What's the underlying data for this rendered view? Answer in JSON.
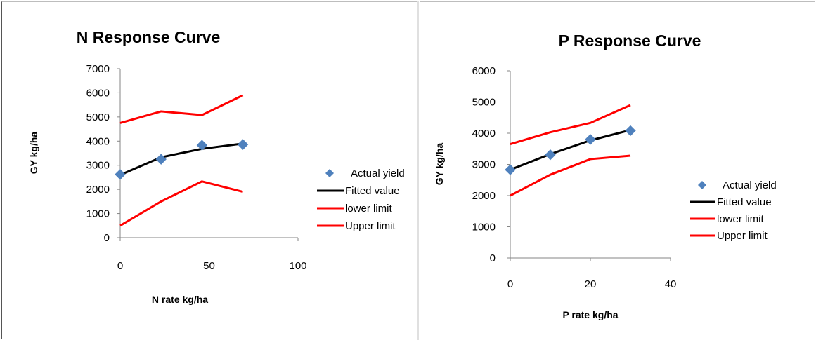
{
  "chart_data": [
    {
      "type": "line",
      "title": "N Response Curve",
      "xlabel": "N rate kg/ha",
      "ylabel": "GY kg/ha",
      "xlim": [
        0,
        100
      ],
      "ylim": [
        0,
        7000
      ],
      "xticks": [
        0,
        50,
        100
      ],
      "yticks": [
        0,
        1000,
        2000,
        3000,
        4000,
        5000,
        6000,
        7000
      ],
      "legend_position": "right",
      "x": [
        0,
        23,
        46,
        69
      ],
      "series": [
        {
          "name": "Actual yield",
          "kind": "scatter",
          "marker": "diamond",
          "color": "#4f81bd",
          "values": [
            2620,
            3250,
            3830,
            3860
          ]
        },
        {
          "name": "Fitted value",
          "kind": "line",
          "color": "#000000",
          "values": [
            2600,
            3330,
            3680,
            3900
          ]
        },
        {
          "name": "lower limit",
          "kind": "line",
          "color": "#ff0000",
          "values": [
            500,
            1500,
            2330,
            1900
          ]
        },
        {
          "name": "Upper limit",
          "kind": "line",
          "color": "#ff0000",
          "values": [
            4750,
            5230,
            5080,
            5900
          ]
        }
      ]
    },
    {
      "type": "line",
      "title": "P Response Curve",
      "xlabel": "P rate kg/ha",
      "ylabel": "GY kg/ha",
      "xlim": [
        0,
        40
      ],
      "ylim": [
        0,
        6000
      ],
      "xticks": [
        0,
        20,
        40
      ],
      "yticks": [
        0,
        1000,
        2000,
        3000,
        4000,
        5000,
        6000
      ],
      "legend_position": "right",
      "x": [
        0,
        10,
        20,
        30
      ],
      "series": [
        {
          "name": "Actual yield",
          "kind": "scatter",
          "marker": "diamond",
          "color": "#4f81bd",
          "values": [
            2830,
            3310,
            3800,
            4080
          ]
        },
        {
          "name": "Fitted value",
          "kind": "line",
          "color": "#000000",
          "values": [
            2830,
            3330,
            3770,
            4100
          ]
        },
        {
          "name": "lower limit",
          "kind": "line",
          "color": "#ff0000",
          "values": [
            2000,
            2670,
            3170,
            3280
          ]
        },
        {
          "name": "Upper limit",
          "kind": "line",
          "color": "#ff0000",
          "values": [
            3650,
            4030,
            4330,
            4900
          ]
        }
      ]
    }
  ]
}
